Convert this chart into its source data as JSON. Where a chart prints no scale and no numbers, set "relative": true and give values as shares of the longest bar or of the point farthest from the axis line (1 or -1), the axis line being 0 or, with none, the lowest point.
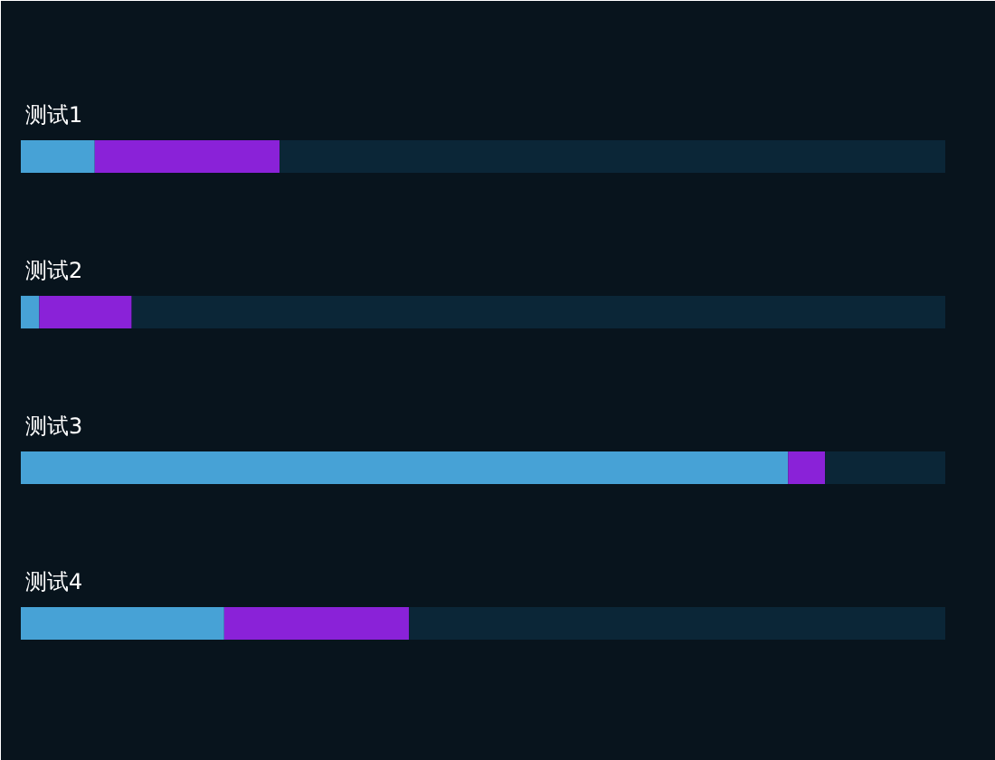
{
  "chart_data": {
    "type": "bar",
    "orientation": "horizontal",
    "stacked": true,
    "relative": true,
    "categories": [
      "测试1",
      "测试2",
      "测试3",
      "测试4"
    ],
    "series": [
      {
        "color": "#47a2d6",
        "values": [
          0.08,
          0.02,
          0.83,
          0.22
        ]
      },
      {
        "color": "#8a22d8",
        "values": [
          0.2,
          0.1,
          0.04,
          0.2
        ]
      },
      {
        "color": "#0b2637",
        "values": [
          0.72,
          0.88,
          0.13,
          0.58
        ]
      }
    ],
    "grid": false
  }
}
